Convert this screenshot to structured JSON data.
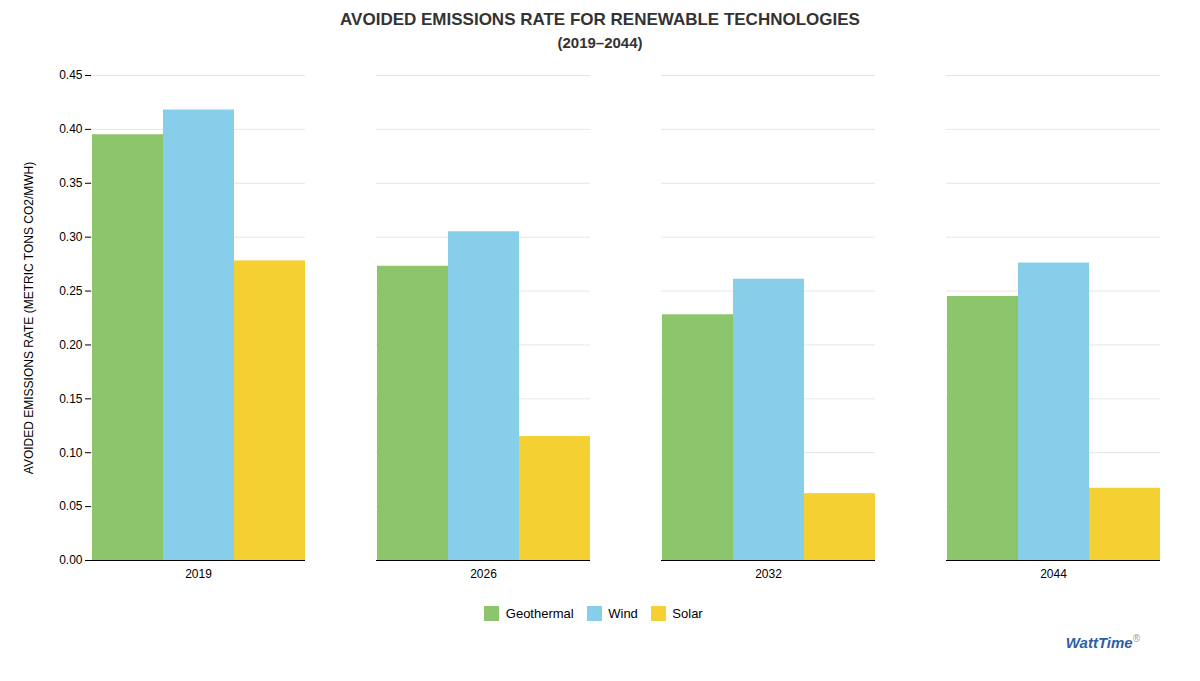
{
  "chart_data": {
    "type": "bar",
    "title": "AVOIDED EMISSIONS RATE FOR RENEWABLE TECHNOLOGIES",
    "subtitle": "(2019–2044)",
    "ylabel": "AVOIDED EMISSIONS RATE (METRIC TONS CO2/MWH)",
    "annotations": [
      "WattTime",
      "®"
    ],
    "categories": [
      "2019",
      "2026",
      "2032",
      "2044"
    ],
    "series": [
      {
        "name": "Geothermal",
        "color": "#8DC56C",
        "values": [
          0.395,
          0.273,
          0.228,
          0.245
        ]
      },
      {
        "name": "Wind",
        "color": "#87CEEB",
        "values": [
          0.418,
          0.305,
          0.261,
          0.276
        ]
      },
      {
        "name": "Solar",
        "color": "#F5D033",
        "values": [
          0.278,
          0.115,
          0.062,
          0.067
        ]
      }
    ],
    "ylim": [
      0,
      0.45
    ],
    "yticks": [
      {
        "value": 0,
        "label": "0.00"
      },
      0.05,
      {
        "value": 0.1,
        "label": "0.10"
      },
      0.15,
      {
        "value": 0.2,
        "label": "0.20"
      },
      0.25,
      {
        "value": 0.3,
        "label": "0.30"
      },
      0.35,
      {
        "value": 0.4,
        "label": "0.40"
      },
      0.45
    ],
    "grid": true,
    "legend": "bottom"
  }
}
